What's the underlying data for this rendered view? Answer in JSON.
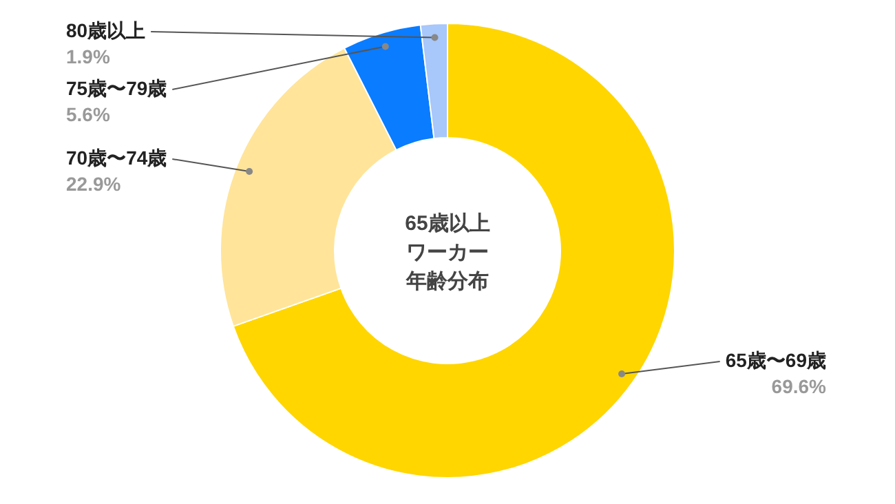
{
  "chart_data": {
    "type": "donut",
    "annotations": [
      "65歳以上",
      "ワーカー",
      "年齢分布"
    ],
    "categories": [
      "65歳〜69歳",
      "70歳〜74歳",
      "75歳〜79歳",
      "80歳以上"
    ],
    "values": [
      69.6,
      22.9,
      5.6,
      1.9
    ],
    "colors": [
      "#ffd600",
      "#ffe49a",
      "#0a7cff",
      "#a8c7fa"
    ],
    "value_labels": [
      "69.6%",
      "22.9%",
      "5.6%",
      "1.9%"
    ]
  }
}
